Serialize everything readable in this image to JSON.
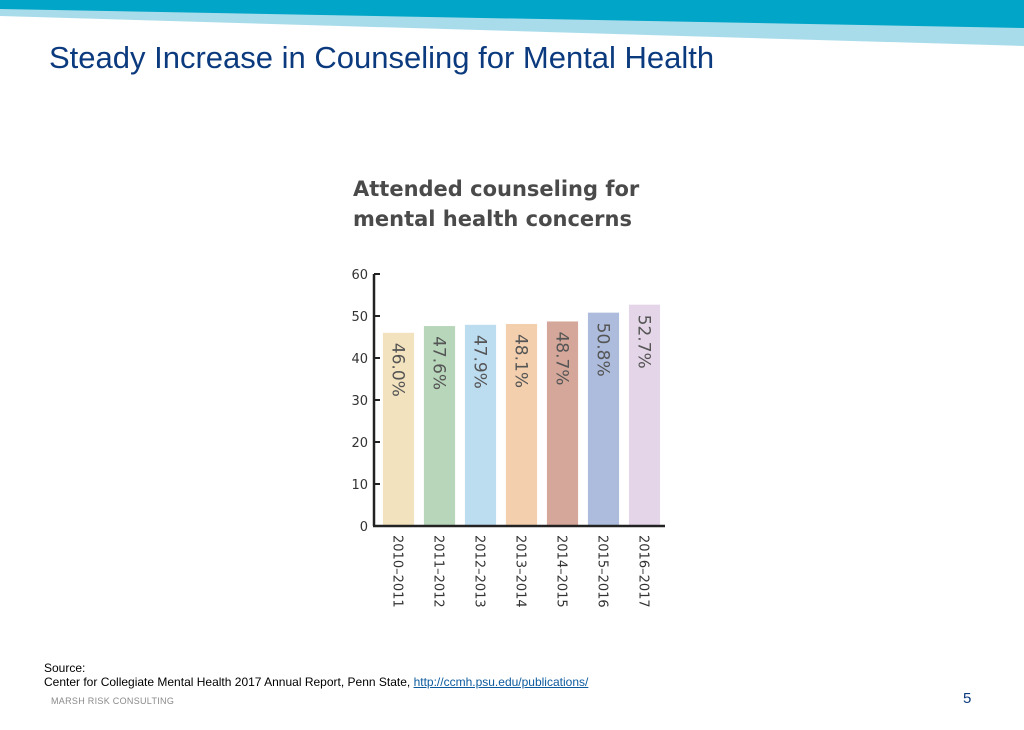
{
  "slide": {
    "title": "Steady Increase in Counseling for Mental Health",
    "source_label": "Source:",
    "source_text": "Center for Collegiate Mental Health 2017 Annual Report, Penn State, ",
    "source_link": "http://ccmh.psu.edu/publications/",
    "footer_brand": "MARSH RISK CONSULTING",
    "page_number": "5",
    "colors": {
      "title": "#0b3a7e",
      "band_dark": "#00a5c8",
      "band_light": "#a9dcea"
    }
  },
  "chart_data": {
    "type": "bar",
    "title_lines": [
      "Attended counseling for",
      "mental health concerns"
    ],
    "categories": [
      "2010–2011",
      "2011–2012",
      "2012–2013",
      "2013–2014",
      "2014–2015",
      "2015–2016",
      "2016–2017"
    ],
    "values": [
      46.0,
      47.6,
      47.9,
      48.1,
      48.7,
      50.8,
      52.7
    ],
    "value_labels": [
      "46.0%",
      "47.6%",
      "47.9%",
      "48.1%",
      "48.7%",
      "50.8%",
      "52.7%"
    ],
    "bar_colors": [
      "#f3e2be",
      "#b7d6ba",
      "#bcdcf0",
      "#f3cfae",
      "#d5a79a",
      "#adbcdc",
      "#e4d6e8"
    ],
    "ylim": [
      0,
      60
    ],
    "yticks": [
      0,
      10,
      20,
      30,
      40,
      50,
      60
    ],
    "grid": false,
    "legend": false
  }
}
